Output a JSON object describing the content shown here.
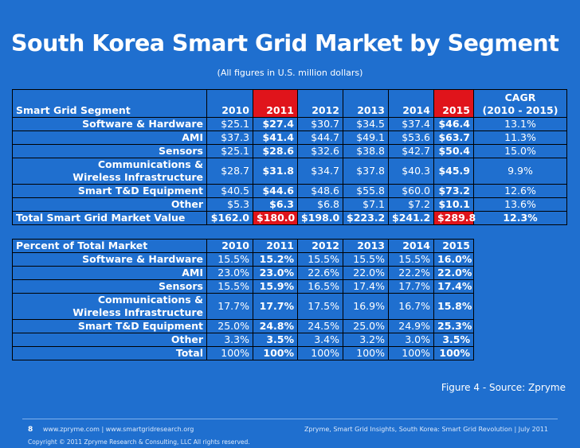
{
  "title": "South Korea Smart Grid Market by Segment",
  "subtitle": "(All figures in U.S. million dollars)",
  "value_table": {
    "header": {
      "segment_label": "Smart Grid Segment",
      "years": [
        "2010",
        "2011",
        "2012",
        "2013",
        "2014",
        "2015"
      ],
      "cagr_line1": "CAGR",
      "cagr_line2": "(2010 - 2015)"
    },
    "rows": [
      {
        "label": "Software & Hardware",
        "values": [
          "$25.1",
          "$27.4",
          "$30.7",
          "$34.5",
          "$37.4",
          "$46.4"
        ],
        "cagr": "13.1%"
      },
      {
        "label": "AMI",
        "values": [
          "$37.3",
          "$41.4",
          "$44.7",
          "$49.1",
          "$53.6",
          "$63.7"
        ],
        "cagr": "11.3%"
      },
      {
        "label": "Sensors",
        "values": [
          "$25.1",
          "$28.6",
          "$32.6",
          "$38.8",
          "$42.7",
          "$50.4"
        ],
        "cagr": "15.0%"
      },
      {
        "label": "Communications & Wireless Infrastructure",
        "values": [
          "$28.7",
          "$31.8",
          "$34.7",
          "$37.8",
          "$40.3",
          "$45.9"
        ],
        "cagr": "9.9%"
      },
      {
        "label": "Smart T&D Equipment",
        "values": [
          "$40.5",
          "$44.6",
          "$48.6",
          "$55.8",
          "$60.0",
          "$73.2"
        ],
        "cagr": "12.6%"
      },
      {
        "label": "Other",
        "values": [
          "$5.3",
          "$6.3",
          "$6.8",
          "$7.1",
          "$7.2",
          "$10.1"
        ],
        "cagr": "13.6%"
      }
    ],
    "total": {
      "label": "Total Smart Grid Market Value",
      "values": [
        "$162.0",
        "$180.0",
        "$198.0",
        "$223.2",
        "$241.2",
        "$289.8"
      ],
      "cagr": "12.3%"
    }
  },
  "percent_table": {
    "header": {
      "label": "Percent of Total Market",
      "years": [
        "2010",
        "2011",
        "2012",
        "2013",
        "2014",
        "2015"
      ]
    },
    "rows": [
      {
        "label": "Software & Hardware",
        "values": [
          "15.5%",
          "15.2%",
          "15.5%",
          "15.5%",
          "15.5%",
          "16.0%"
        ]
      },
      {
        "label": "AMI",
        "values": [
          "23.0%",
          "23.0%",
          "22.6%",
          "22.0%",
          "22.2%",
          "22.0%"
        ]
      },
      {
        "label": "Sensors",
        "values": [
          "15.5%",
          "15.9%",
          "16.5%",
          "17.4%",
          "17.7%",
          "17.4%"
        ]
      },
      {
        "label": "Communications & Wireless Infrastructure",
        "values": [
          "17.7%",
          "17.7%",
          "17.5%",
          "16.9%",
          "16.7%",
          "15.8%"
        ]
      },
      {
        "label": "Smart T&D Equipment",
        "values": [
          "25.0%",
          "24.8%",
          "24.5%",
          "25.0%",
          "24.9%",
          "25.3%"
        ]
      },
      {
        "label": "Other",
        "values": [
          "3.3%",
          "3.5%",
          "3.4%",
          "3.2%",
          "3.0%",
          "3.5%"
        ]
      },
      {
        "label": "Total",
        "values": [
          "100%",
          "100%",
          "100%",
          "100%",
          "100%",
          "100%"
        ]
      }
    ]
  },
  "figure_source": "Figure 4 - Source: Zpryme",
  "footer": {
    "page_number": "8",
    "links": "www.zpryme.com | www.smartgridresearch.org",
    "right_text": "Zpryme, Smart Grid Insights, South Korea: Smart Grid Revolution | July 2011",
    "copyright": "Copyright © 2011 Zpryme Research & Consulting, LLC All rights reserved."
  },
  "colors": {
    "background": "#1f6fcf",
    "highlight": "#e0141b"
  }
}
